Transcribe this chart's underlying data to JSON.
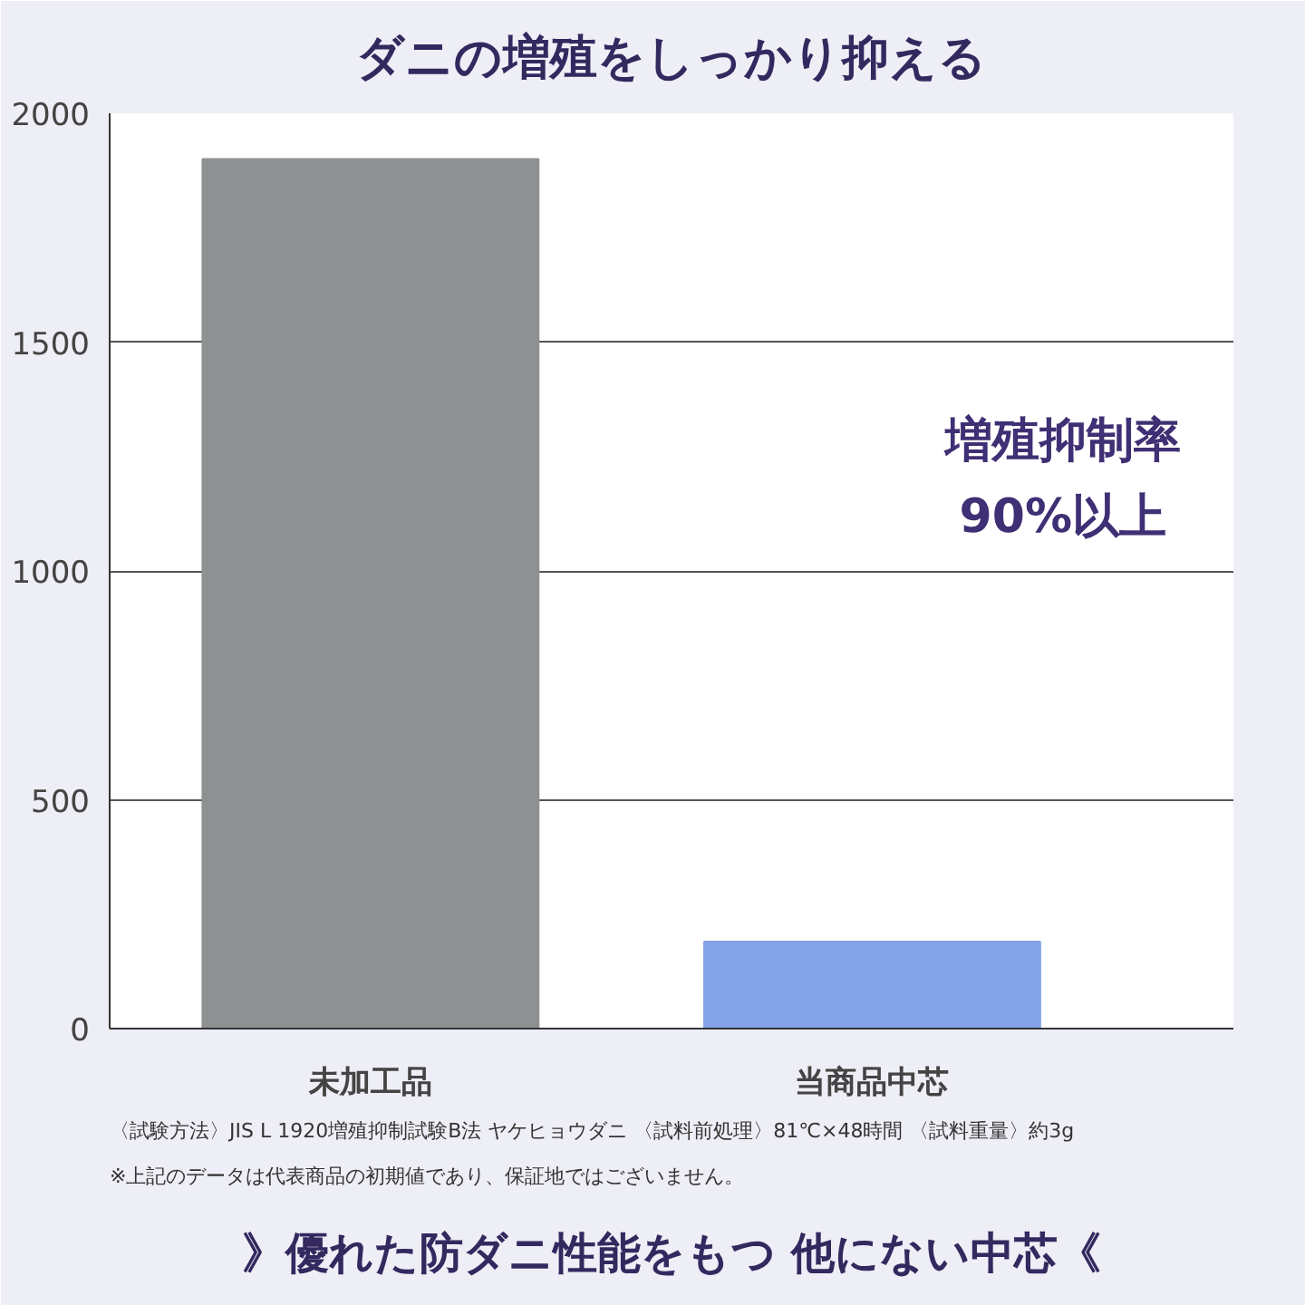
{
  "chart_data": {
    "type": "bar",
    "title": "ダニの増殖をしっかり抑える",
    "categories": [
      "未加工品",
      "当商品中芯"
    ],
    "values": [
      1900,
      190
    ],
    "colors": [
      "#8e9191",
      "#84a3e6"
    ],
    "ylim": [
      0,
      2000
    ],
    "yticks": [
      0,
      500,
      1000,
      1500,
      2000
    ],
    "grid": "y",
    "annotations": [
      "増殖抑制率\n90%以上",
      "〈試験方法〉JIS L 1920増殖抑制試験B法 ヤケヒョウダニ 〈試料前処理〉81℃×48時間 〈試料重量〉約3g",
      "※上記のデータは代表商品の初期値であり、保証地ではございません。",
      "》優れた防ダニ性能をもつ 他にない中芯《"
    ]
  }
}
